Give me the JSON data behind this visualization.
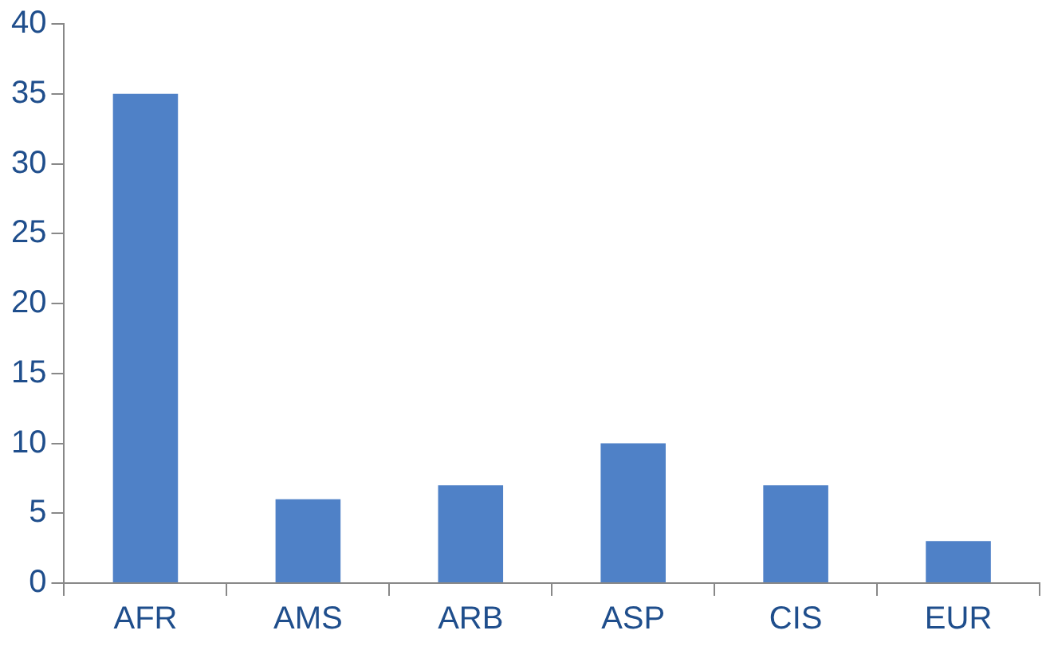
{
  "chart_data": {
    "type": "bar",
    "categories": [
      "AFR",
      "AMS",
      "ARB",
      "ASP",
      "CIS",
      "EUR"
    ],
    "values": [
      35,
      6,
      7,
      10,
      7,
      3
    ],
    "color": "#4f81c7",
    "ylim": [
      0,
      40
    ],
    "yticks": [
      0,
      5,
      10,
      15,
      20,
      25,
      30,
      35,
      40
    ],
    "grid": false,
    "legend": false
  }
}
